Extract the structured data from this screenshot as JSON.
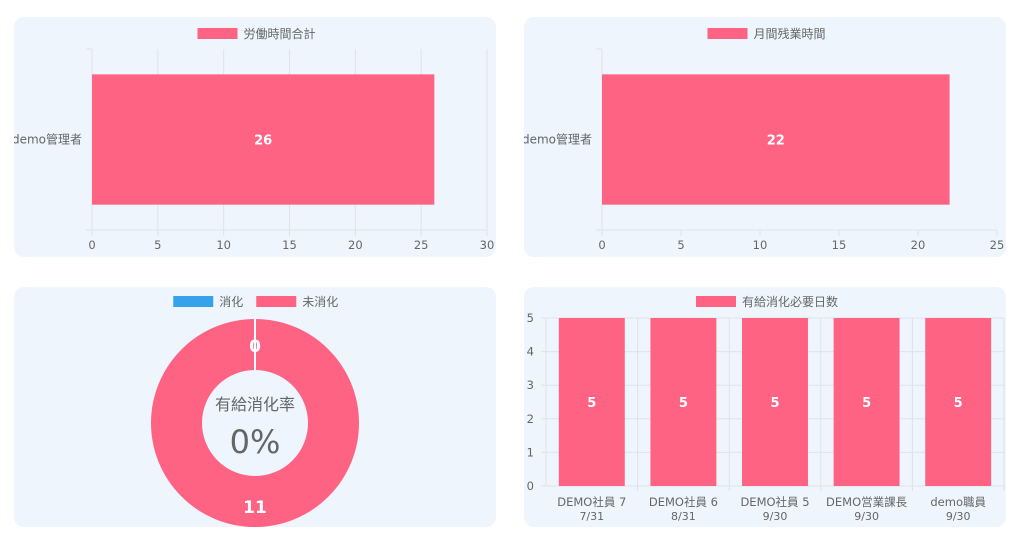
{
  "colors": {
    "series_pink": "#ff6384",
    "series_blue": "#36a2eb",
    "panel_bg": "#eef5fd",
    "grid": "#dfe3e8",
    "axis_text": "#666666"
  },
  "chart_data": [
    {
      "type": "bar",
      "orientation": "horizontal",
      "categories": [
        "demo管理者"
      ],
      "series": [
        {
          "name": "労働時間合計",
          "values": [
            26
          ]
        }
      ],
      "xlim": [
        0,
        30
      ],
      "xticks": [
        0,
        5,
        10,
        15,
        20,
        25,
        30
      ],
      "data_labels": [
        "26"
      ],
      "legend_position": "top",
      "grid": true
    },
    {
      "type": "bar",
      "orientation": "horizontal",
      "categories": [
        "demo管理者"
      ],
      "series": [
        {
          "name": "月間残業時間",
          "values": [
            22
          ]
        }
      ],
      "xlim": [
        0,
        25
      ],
      "xticks": [
        0,
        5,
        10,
        15,
        20,
        25
      ],
      "data_labels": [
        "22"
      ],
      "legend_position": "top",
      "grid": false
    },
    {
      "type": "pie",
      "variant": "doughnut",
      "labels": [
        "消化",
        "未消化"
      ],
      "values": [
        0,
        11
      ],
      "data_labels": [
        "0",
        "11"
      ],
      "center_title": "有給消化率",
      "center_value": "0%",
      "legend_position": "top"
    },
    {
      "type": "bar",
      "orientation": "vertical",
      "categories": [
        {
          "name": "DEMO社員 7",
          "date": "7/31"
        },
        {
          "name": "DEMO社員 6",
          "date": "8/31"
        },
        {
          "name": "DEMO社員 5",
          "date": "9/30"
        },
        {
          "name": "DEMO営業課長",
          "date": "9/30"
        },
        {
          "name": "demo職員",
          "date": "9/30"
        }
      ],
      "series": [
        {
          "name": "有給消化必要日数",
          "values": [
            5,
            5,
            5,
            5,
            5
          ]
        }
      ],
      "ylim": [
        0,
        5
      ],
      "yticks": [
        0,
        1,
        2,
        3,
        4,
        5
      ],
      "data_labels": [
        "5",
        "5",
        "5",
        "5",
        "5"
      ],
      "legend_position": "top",
      "grid": true
    }
  ]
}
